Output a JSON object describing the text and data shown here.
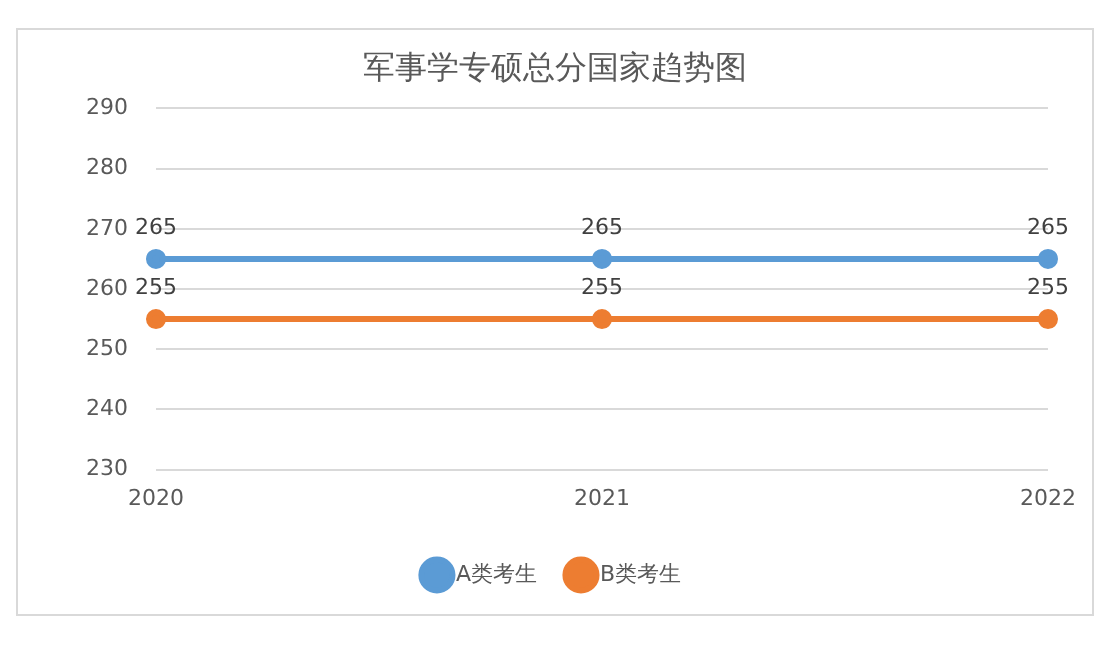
{
  "chart_data": {
    "type": "line",
    "title": "军事学专硕总分国家趋势图",
    "categories": [
      "2020",
      "2021",
      "2022"
    ],
    "series": [
      {
        "name": "A类考生",
        "color": "#5b9bd5",
        "values": [
          265,
          265,
          265
        ]
      },
      {
        "name": "B类考生",
        "color": "#ed7d31",
        "values": [
          255,
          255,
          255
        ]
      }
    ],
    "ylim": [
      230,
      290
    ],
    "yticks": [
      230,
      240,
      250,
      260,
      270,
      280,
      290
    ],
    "grid": "y",
    "legend": "bottom",
    "marker": "circle",
    "line_style": "solid",
    "data_labels": true
  }
}
